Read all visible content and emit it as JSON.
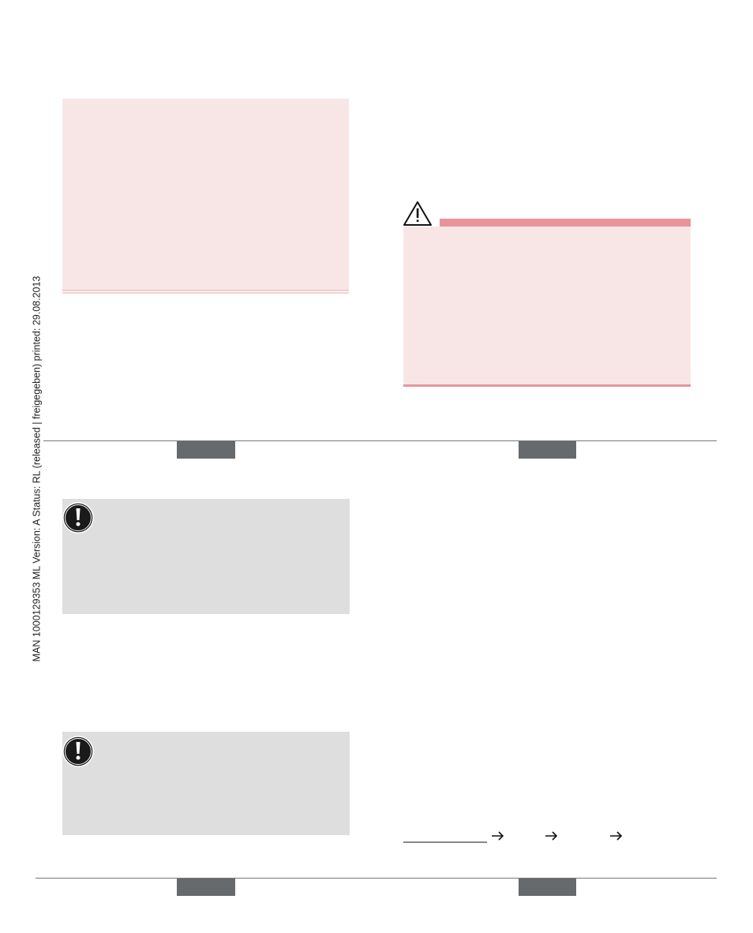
{
  "sidebar": {
    "text": "MAN  1000129353  ML  Version: A  Status: RL (released | freigegeben)  printed: 29.08.2013"
  }
}
